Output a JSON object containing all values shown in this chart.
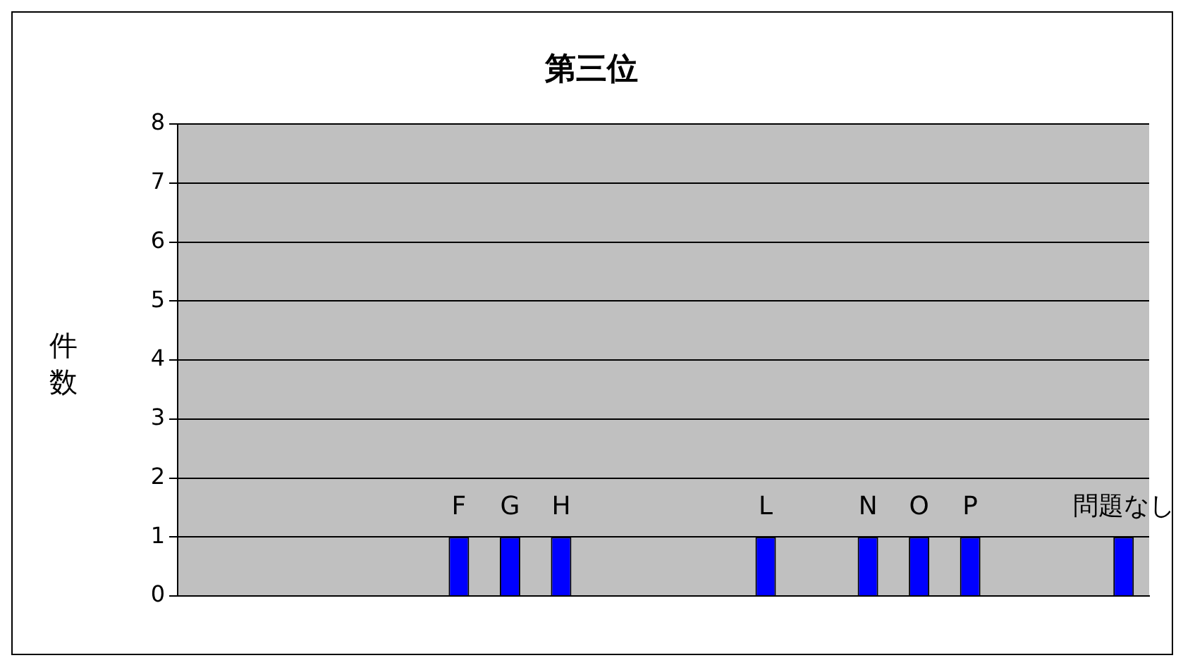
{
  "chart_data": {
    "type": "bar",
    "title": "第三位",
    "ylabel": "件数",
    "categories": [
      null,
      null,
      null,
      null,
      null,
      "F",
      "G",
      "H",
      null,
      null,
      null,
      "L",
      null,
      "N",
      "O",
      "P",
      null,
      null,
      "問題なし"
    ],
    "values": [
      0,
      0,
      0,
      0,
      0,
      1,
      1,
      1,
      0,
      0,
      0,
      1,
      0,
      1,
      1,
      1,
      0,
      0,
      1
    ],
    "color": "#0000ff",
    "ylim": [
      0,
      8
    ],
    "yticks": [
      0,
      1,
      2,
      3,
      4,
      5,
      6,
      7,
      8
    ],
    "grid": "y",
    "legend": false,
    "tick_labels": "y"
  }
}
